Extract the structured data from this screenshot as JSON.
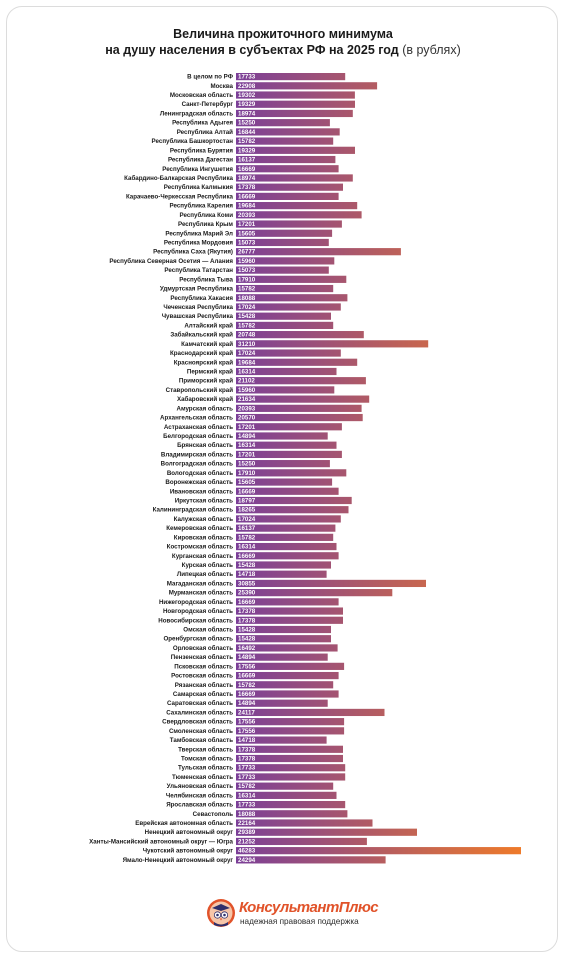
{
  "title": {
    "line1": "Величина прожиточного минимума",
    "line2": "на душу населения в субъектах РФ на 2025 год",
    "unit": "(в рублях)"
  },
  "colors": {
    "bar_start": "#7b3f98",
    "bar_end": "#ee7a2a",
    "brand": "#e1532a"
  },
  "chart_data": {
    "type": "bar",
    "orientation": "horizontal",
    "title": "Величина прожиточного минимума на душу населения в субъектах РФ на 2025 год",
    "unit": "(в рублях)",
    "categories": [
      "В целом по РФ",
      "Москва",
      "Московская область",
      "Санкт-Петербург",
      "Ленинградская область",
      "Республика Адыгея",
      "Республика Алтай",
      "Республика Башкортостан",
      "Республика Бурятия",
      "Республика Дагестан",
      "Республика Ингушетия",
      "Кабардино-Балкарская Республика",
      "Республика Калмыкия",
      "Карачаево-Черкесская Республика",
      "Республика Карелия",
      "Республика Коми",
      "Республика Крым",
      "Республика Марий Эл",
      "Республика Мордовия",
      "Республика Саха (Якутия)",
      "Республика Северная Осетия — Алания",
      "Республика Татарстан",
      "Республика Тыва",
      "Удмуртская Республика",
      "Республика Хакасия",
      "Чеченская Республика",
      "Чувашская Республика",
      "Алтайский край",
      "Забайкальский край",
      "Камчатский край",
      "Краснодарский край",
      "Красноярский край",
      "Пермский край",
      "Приморский край",
      "Ставропольский край",
      "Хабаровский край",
      "Амурская область",
      "Архангельская область",
      "Астраханская область",
      "Белгородская область",
      "Брянская область",
      "Владимирская область",
      "Волгоградская область",
      "Вологодская область",
      "Воронежская область",
      "Ивановская область",
      "Иркутская область",
      "Калининградская область",
      "Калужская область",
      "Кемеровская область",
      "Кировская область",
      "Костромская область",
      "Курганская область",
      "Курская область",
      "Липецкая область",
      "Магаданская область",
      "Мурманская область",
      "Нижегородская область",
      "Новгородская область",
      "Новосибирская область",
      "Омская область",
      "Оренбургская область",
      "Орловская область",
      "Пензенская область",
      "Псковская область",
      "Ростовская область",
      "Рязанская область",
      "Самарская область",
      "Саратовская область",
      "Сахалинская область",
      "Свердловская область",
      "Смоленская область",
      "Тамбовская область",
      "Тверская область",
      "Томская область",
      "Тульская область",
      "Тюменская область",
      "Ульяновская область",
      "Челябинская область",
      "Ярославская область",
      "Севастополь",
      "Еврейская автономная область",
      "Ненецкий автономный округ",
      "Ханты-Мансийский автономный округ — Югра",
      "Чукотский автономный округ",
      "Ямало-Ненецкий автономный округ"
    ],
    "values": [
      17733,
      22908,
      19302,
      19329,
      18974,
      15250,
      16844,
      15782,
      19329,
      16137,
      16669,
      18974,
      17378,
      16669,
      19684,
      20393,
      17201,
      15605,
      15073,
      26777,
      15960,
      15073,
      17910,
      15782,
      18088,
      17024,
      15428,
      15782,
      20748,
      31210,
      17024,
      19684,
      16314,
      21102,
      15960,
      21634,
      20393,
      20570,
      17201,
      14894,
      16314,
      17201,
      15250,
      17910,
      15605,
      16669,
      18797,
      18265,
      17024,
      16137,
      15782,
      16314,
      16669,
      15428,
      14718,
      30855,
      25390,
      16669,
      17378,
      17378,
      15428,
      15428,
      16492,
      14894,
      17556,
      16669,
      15782,
      16669,
      14894,
      24117,
      17556,
      17556,
      14718,
      17378,
      17378,
      17733,
      17733,
      15782,
      16314,
      17733,
      18088,
      22164,
      29389,
      21252,
      46283,
      24294
    ],
    "xlim": [
      0,
      46283
    ],
    "grid": false,
    "legend": "none"
  },
  "footer": {
    "brand": "КонсультантПлюс",
    "tagline": "надежная правовая поддержка"
  },
  "icons": {
    "logo": "consultantplus-owl-emblem"
  }
}
